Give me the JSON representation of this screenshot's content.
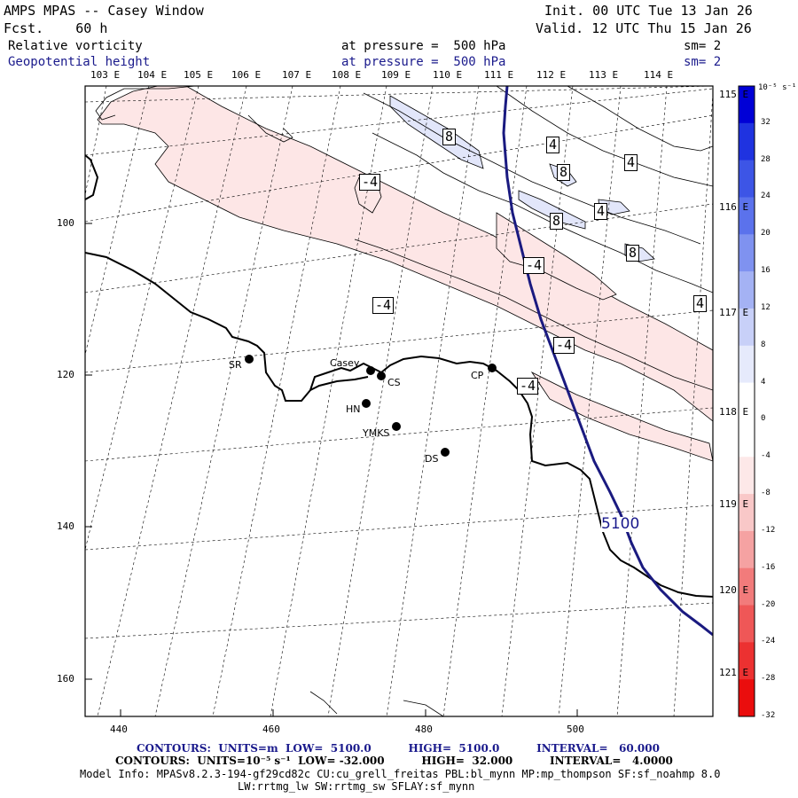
{
  "header": {
    "title": "AMPS MPAS -- Casey Window",
    "fcst": "Fcst.    60 h",
    "init": "Init. 00 UTC Tue 13 Jan 26",
    "valid": "Valid. 12 UTC Thu 15 Jan 26",
    "field1": {
      "name": "Relative vorticity",
      "pressure": "at pressure =  500 hPa",
      "sm": "sm= 2"
    },
    "field2": {
      "name": "Geopotential height",
      "pressure": "at pressure =  500 hPa",
      "sm": "sm= 2"
    }
  },
  "axes": {
    "top_lon": [
      "103 E",
      "104 E",
      "105 E",
      "106 E",
      "107 E",
      "108 E",
      "109 E",
      "110 E",
      "111 E",
      "112 E",
      "113 E",
      "114 E"
    ],
    "right_lon": [
      "115 E",
      "116 E",
      "117 E",
      "118 E",
      "119 E",
      "120 E",
      "121 E"
    ],
    "x_ticks": [
      "440",
      "460",
      "480",
      "500"
    ],
    "y_ticks": [
      "100",
      "120",
      "140",
      "160"
    ]
  },
  "stations": [
    {
      "name": "SR"
    },
    {
      "name": "Casey"
    },
    {
      "name": "CS"
    },
    {
      "name": "CP"
    },
    {
      "name": "HN"
    },
    {
      "name": "YMKS"
    },
    {
      "name": "DS"
    }
  ],
  "contour_labels": [
    {
      "text": "8"
    },
    {
      "text": "4"
    },
    {
      "text": "4"
    },
    {
      "text": "8"
    },
    {
      "text": "-4"
    },
    {
      "text": "8"
    },
    {
      "text": "4"
    },
    {
      "text": "8"
    },
    {
      "text": "-4"
    },
    {
      "text": "-4"
    },
    {
      "text": "4"
    },
    {
      "text": "-4"
    },
    {
      "text": "-4"
    }
  ],
  "height_label": "5100",
  "colorbar": {
    "units": "10⁻⁵ s⁻¹",
    "ticks": [
      "32",
      "28",
      "24",
      "20",
      "16",
      "12",
      "8",
      "4",
      "0",
      "-4",
      "-8",
      "-12",
      "-16",
      "-20",
      "-24",
      "-28",
      "-32"
    ],
    "colors": [
      "#0000d6",
      "#1f33e0",
      "#3d55e6",
      "#5b72ec",
      "#7f92f0",
      "#a4b2f4",
      "#c8d0f8",
      "#e6eafc",
      "#ffffff",
      "#ffffff",
      "#fde8e8",
      "#f9c8c8",
      "#f5a2a2",
      "#f27b7b",
      "#ef5757",
      "#ec3131",
      "#ea0d0d"
    ]
  },
  "footer": {
    "line1": "CONTOURS:  UNITS=m  LOW=  5100.0          HIGH=  5100.0          INTERVAL=   60.000",
    "line2": "CONTOURS:  UNITS=10⁻⁵ s⁻¹  LOW= -32.000          HIGH=  32.000          INTERVAL=   4.0000",
    "line3": "Model Info: MPASv8.2.3-194-gf29cd82c CU:cu_grell_freitas PBL:bl_mynn MP:mp_thompson SF:sf_noahmp 8.0",
    "line4": "LW:rrtmg_lw SW:rrtmg_sw SFLAY:sf_mynn"
  }
}
